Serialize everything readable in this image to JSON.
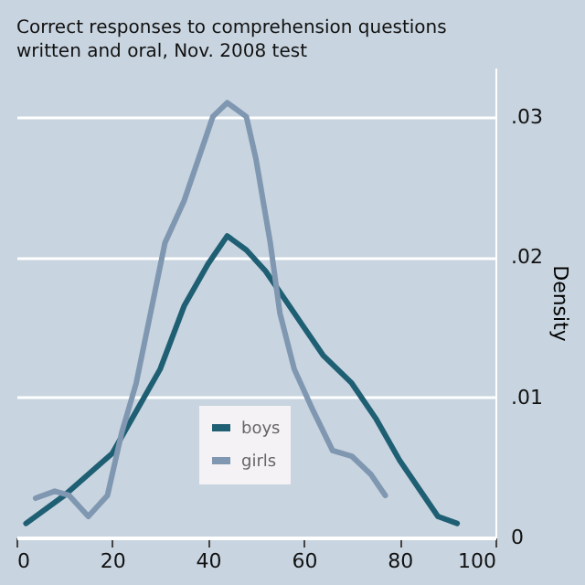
{
  "chart_data": {
    "type": "line",
    "title": "Correct responses to comprehension questions",
    "subtitle": "written and oral, Nov. 2008 test",
    "ylabel": "Density",
    "series": [
      {
        "name": "boys",
        "color": "#1f5f73",
        "x": [
          2,
          10,
          15,
          20,
          25,
          30,
          35,
          40,
          44,
          48,
          52,
          56,
          60,
          64,
          70,
          75,
          80,
          85,
          88,
          92
        ],
        "values": [
          0.001,
          0.003,
          0.0045,
          0.006,
          0.009,
          0.012,
          0.0165,
          0.0195,
          0.0215,
          0.0205,
          0.019,
          0.017,
          0.015,
          0.013,
          0.011,
          0.0085,
          0.0055,
          0.003,
          0.0015,
          0.001
        ]
      },
      {
        "name": "girls",
        "color": "#7f97b0",
        "x": [
          4,
          8,
          11,
          15,
          19,
          22,
          25,
          28,
          31,
          35,
          38,
          41,
          44,
          48,
          50,
          53,
          55,
          58,
          62,
          66,
          70,
          74,
          77
        ],
        "values": [
          0.0028,
          0.0033,
          0.003,
          0.0015,
          0.003,
          0.0075,
          0.011,
          0.016,
          0.021,
          0.024,
          0.027,
          0.03,
          0.031,
          0.03,
          0.027,
          0.021,
          0.016,
          0.012,
          0.009,
          0.0062,
          0.0058,
          0.0045,
          0.003
        ]
      }
    ],
    "xlim": [
      0,
      100
    ],
    "xticks": [
      0,
      20,
      40,
      60,
      80,
      100
    ],
    "ylim": [
      0,
      0.0335
    ],
    "yticks": [
      0,
      {
        "value": 0.01,
        "label": ".01"
      },
      {
        "value": 0.02,
        "label": ".02"
      },
      {
        "value": 0.03,
        "label": ".03"
      }
    ],
    "grid": "y",
    "legend": "bottom",
    "marker": "none",
    "line_style": "solid"
  }
}
